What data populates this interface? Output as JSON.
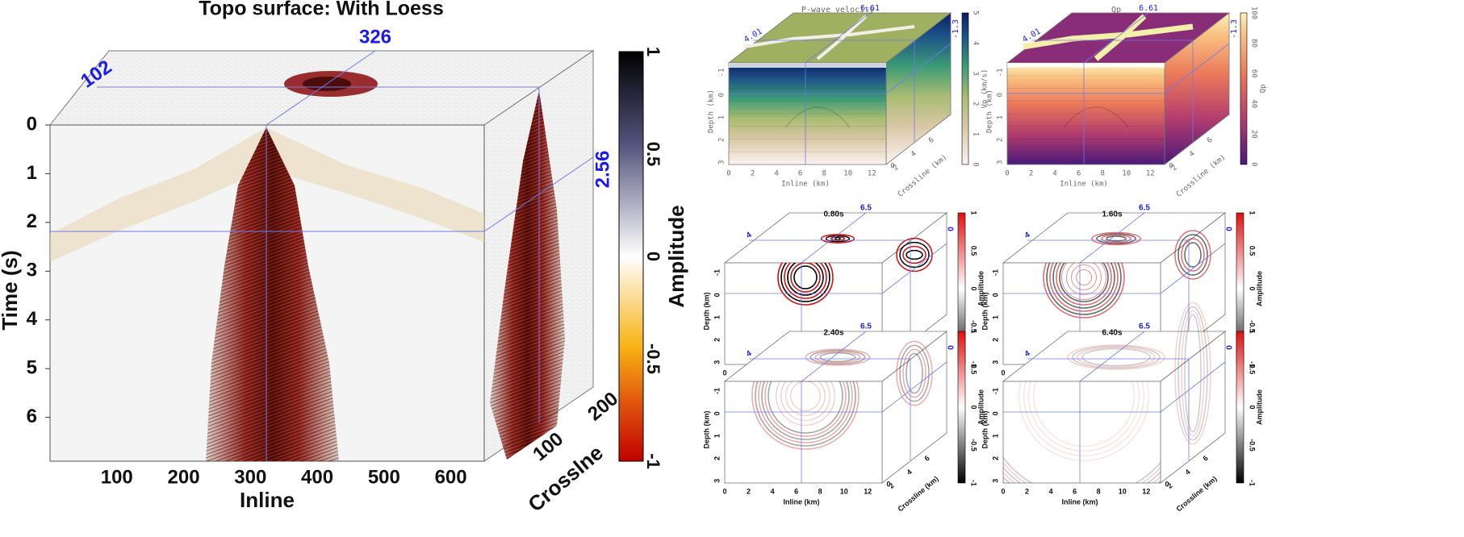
{
  "chart_data": [
    {
      "type": "heatmap",
      "title": "Topo surface: With Loess",
      "xlabel": "Inline",
      "ylabel": "Time (s)",
      "zlabel": "Crosslne",
      "x_ticks": [
        "100",
        "200",
        "300",
        "400",
        "500",
        "600"
      ],
      "y_ticks": [
        "0",
        "1",
        "2",
        "3",
        "4",
        "5",
        "6"
      ],
      "z_ticks": [
        "100",
        "200"
      ],
      "slice_labels": {
        "inline": "326",
        "crossline": "102",
        "time": "2.56"
      },
      "colorbar": {
        "label": "Amplitude",
        "ticks": [
          "1",
          "0.5",
          "0",
          "-0.5",
          "-1"
        ],
        "range": [
          -1,
          1
        ]
      }
    },
    {
      "type": "heatmap",
      "title": "P-wave velocity",
      "xlabel": "Inline (km)",
      "ylabel": "Depth (km)",
      "zlabel": "Crossline (km)",
      "x_ticks": [
        "0",
        "2",
        "4",
        "6",
        "8",
        "10",
        "12"
      ],
      "y_ticks": [
        "-1",
        "0",
        "1",
        "2",
        "3"
      ],
      "z_ticks": [
        "2",
        "4",
        "6"
      ],
      "slice_labels": {
        "inline": "6.61",
        "crossline": "4.01",
        "depth": "-1.3"
      },
      "colorbar": {
        "label": "Vp (km/s)",
        "ticks": [
          "0",
          "1",
          "2",
          "3",
          "4",
          "5"
        ]
      }
    },
    {
      "type": "heatmap",
      "title": "Qp",
      "xlabel": "Inline (km)",
      "ylabel": "Depth (km)",
      "zlabel": "Crossline (km)",
      "x_ticks": [
        "0",
        "2",
        "4",
        "6",
        "8",
        "10",
        "12"
      ],
      "y_ticks": [
        "-1",
        "0",
        "1",
        "2",
        "3"
      ],
      "z_ticks": [
        "2",
        "4",
        "6"
      ],
      "slice_labels": {
        "inline": "6.61",
        "crossline": "4.01",
        "depth": "-1.3"
      },
      "colorbar": {
        "label": "Qp",
        "ticks": [
          "0",
          "20",
          "40",
          "60",
          "80",
          "100"
        ]
      }
    },
    {
      "type": "heatmap",
      "title": "0.80s",
      "xlabel": "Inline (km)",
      "ylabel": "Depth (km)",
      "zlabel": "Crossline (km)",
      "x_ticks": [
        "0",
        "2",
        "4",
        "6",
        "8",
        "10",
        "12"
      ],
      "y_ticks": [
        "-1",
        "0",
        "1",
        "2",
        "3"
      ],
      "z_ticks": [
        "2",
        "4",
        "6"
      ],
      "slice_labels": {
        "inline": "6.5",
        "crossline": "4",
        "depth": "0"
      },
      "colorbar": {
        "label": "Amplitude",
        "ticks": [
          "1",
          "0.5",
          "0",
          "-0.5",
          "-1"
        ]
      }
    },
    {
      "type": "heatmap",
      "title": "1.60s",
      "xlabel": "Inline (km)",
      "ylabel": "Depth (km)",
      "zlabel": "Crossline (km)",
      "x_ticks": [
        "0",
        "2",
        "4",
        "6",
        "8",
        "10",
        "12"
      ],
      "y_ticks": [
        "-1",
        "0",
        "1",
        "2",
        "3"
      ],
      "z_ticks": [
        "2",
        "4",
        "6"
      ],
      "slice_labels": {
        "inline": "6.5",
        "crossline": "4",
        "depth": "0"
      },
      "colorbar": {
        "label": "Amplitude",
        "ticks": [
          "1",
          "0.5",
          "0",
          "-0.5",
          "-1"
        ]
      }
    },
    {
      "type": "heatmap",
      "title": "2.40s",
      "xlabel": "Inline (km)",
      "ylabel": "Depth (km)",
      "zlabel": "Crossline (km)",
      "x_ticks": [
        "0",
        "2",
        "4",
        "6",
        "8",
        "10",
        "12"
      ],
      "y_ticks": [
        "-1",
        "0",
        "1",
        "2",
        "3"
      ],
      "z_ticks": [
        "2",
        "4",
        "6"
      ],
      "slice_labels": {
        "inline": "6.5",
        "crossline": "4",
        "depth": "0"
      },
      "colorbar": {
        "label": "Amplitude",
        "ticks": [
          "1",
          "0.5",
          "0",
          "-0.5",
          "-1"
        ]
      }
    },
    {
      "type": "heatmap",
      "title": "6.40s",
      "xlabel": "Inline (km)",
      "ylabel": "Depth (km)",
      "zlabel": "Crossline (km)",
      "x_ticks": [
        "0",
        "2",
        "4",
        "6",
        "8",
        "10",
        "12"
      ],
      "y_ticks": [
        "-1",
        "0",
        "1",
        "2",
        "3"
      ],
      "z_ticks": [
        "2",
        "4",
        "6"
      ],
      "slice_labels": {
        "inline": "6.5",
        "crossline": "4",
        "depth": "0"
      },
      "colorbar": {
        "label": "Amplitude",
        "ticks": [
          "1",
          "0.5",
          "0",
          "-0.5",
          "-1"
        ]
      }
    }
  ],
  "colors": {
    "slice_line": "#6f7ae8",
    "slice_label": "#1a1af0",
    "seismic_neg": "#8a0a0a",
    "seismic_pos": "#111122",
    "vp_top": "#9fb060",
    "qp_top": "#8a2d78",
    "qp_channel": "#f3eea8"
  }
}
